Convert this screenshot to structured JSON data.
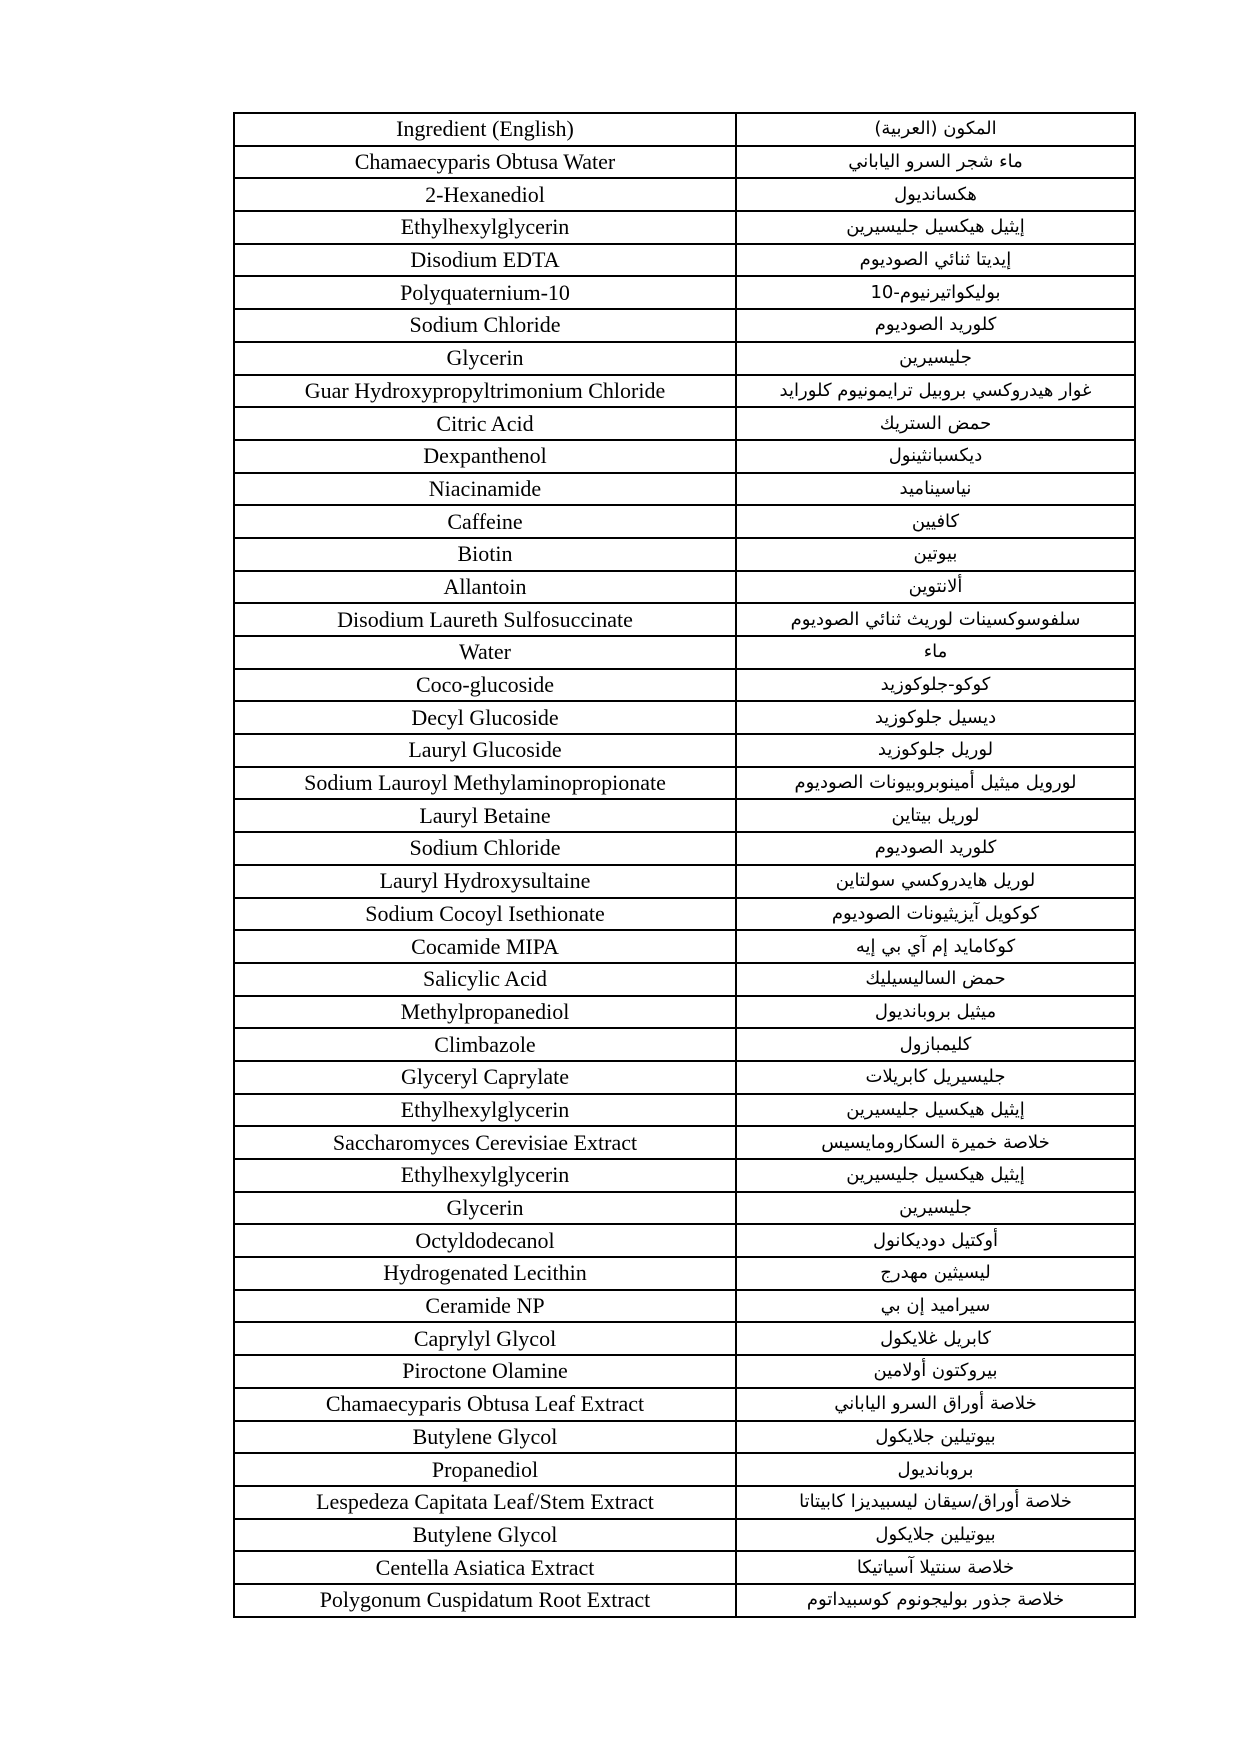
{
  "table": {
    "header": [
      "Ingredient (English)",
      "المكون (العربية)"
    ],
    "rows": [
      [
        "Chamaecyparis Obtusa Water",
        "ماء شجر السرو الياباني"
      ],
      [
        "2-Hexanediol",
        "هكسانديول"
      ],
      [
        "Ethylhexylglycerin",
        "إيثيل هيكسيل جليسيرين"
      ],
      [
        "Disodium EDTA",
        "إيديتا ثنائي الصوديوم"
      ],
      [
        "Polyquaternium-10",
        "بوليكواتيرنيوم-10"
      ],
      [
        "Sodium Chloride",
        "كلوريد الصوديوم"
      ],
      [
        "Glycerin",
        "جليسيرين"
      ],
      [
        "Guar Hydroxypropyltrimonium Chloride",
        "غوار هيدروكسي بروبيل ترايمونيوم كلورايد"
      ],
      [
        "Citric Acid",
        "حمض الستريك"
      ],
      [
        "Dexpanthenol",
        "ديكسبانثينول"
      ],
      [
        "Niacinamide",
        "نياسيناميد"
      ],
      [
        "Caffeine",
        "كافيين"
      ],
      [
        "Biotin",
        "بيوتين"
      ],
      [
        "Allantoin",
        "ألانتوين"
      ],
      [
        "Disodium Laureth Sulfosuccinate",
        "سلفوسوكسينات لوريث ثنائي الصوديوم"
      ],
      [
        "Water",
        "ماء"
      ],
      [
        "Coco-glucoside",
        "كوكو-جلوكوزيد"
      ],
      [
        "Decyl Glucoside",
        "ديسيل جلوكوزيد"
      ],
      [
        "Lauryl Glucoside",
        "لوريل جلوكوزيد"
      ],
      [
        "Sodium Lauroyl Methylaminopropionate",
        "لورويل ميثيل أمينوبروبيونات الصوديوم"
      ],
      [
        "Lauryl Betaine",
        "لوريل بيتاين"
      ],
      [
        "Sodium Chloride",
        "كلوريد الصوديوم"
      ],
      [
        "Lauryl Hydroxysultaine",
        "لوريل هايدروكسي سولتاين"
      ],
      [
        "Sodium Cocoyl Isethionate",
        "كوكويل آيزيثيونات الصوديوم"
      ],
      [
        "Cocamide MIPA",
        "كوكامايد إم آي بي إيه"
      ],
      [
        "Salicylic Acid",
        "حمض الساليسيليك"
      ],
      [
        "Methylpropanediol",
        "ميثيل بروبانديول"
      ],
      [
        "Climbazole",
        "كليمبازول"
      ],
      [
        "Glyceryl Caprylate",
        "جليسيريل كابريلات"
      ],
      [
        "Ethylhexylglycerin",
        "إيثيل هيكسيل جليسيرين"
      ],
      [
        "Saccharomyces Cerevisiae Extract",
        "خلاصة خميرة السكارومايسيس"
      ],
      [
        "Ethylhexylglycerin",
        "إيثيل هيكسيل جليسيرين"
      ],
      [
        "Glycerin",
        "جليسيرين"
      ],
      [
        "Octyldodecanol",
        "أوكتيل دوديكانول"
      ],
      [
        "Hydrogenated Lecithin",
        "ليسيثين مهدرج"
      ],
      [
        "Ceramide NP",
        "سيراميد إن بي"
      ],
      [
        "Caprylyl Glycol",
        "كابريل غلايكول"
      ],
      [
        "Piroctone Olamine",
        "بيروكتون أولامين"
      ],
      [
        "Chamaecyparis Obtusa Leaf Extract",
        "خلاصة أوراق السرو الياباني"
      ],
      [
        "Butylene Glycol",
        "بيوتيلين جلايكول"
      ],
      [
        "Propanediol",
        "بروبانديول"
      ],
      [
        "Lespedeza Capitata Leaf/Stem Extract",
        "خلاصة أوراق/سيقان ليسبيديزا كابيتاتا"
      ],
      [
        "Butylene Glycol",
        "بيوتيلين جلايكول"
      ],
      [
        "Centella Asiatica Extract",
        "خلاصة سنتيلا آسياتيكا"
      ],
      [
        "Polygonum Cuspidatum Root Extract",
        "خلاصة جذور بوليجونوم كوسبيداتوم"
      ]
    ]
  }
}
